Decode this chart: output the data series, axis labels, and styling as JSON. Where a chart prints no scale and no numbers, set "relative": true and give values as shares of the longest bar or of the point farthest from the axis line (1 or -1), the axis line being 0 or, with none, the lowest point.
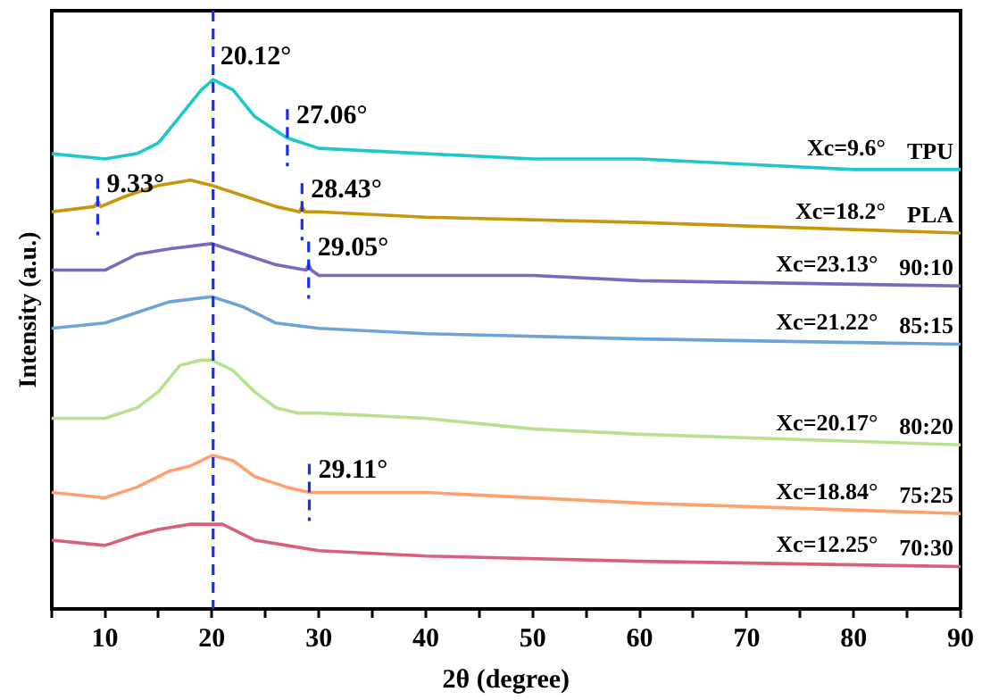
{
  "chart_data": {
    "type": "line",
    "relative": true,
    "xlabel": "2θ (degree)",
    "ylabel": "Intensity (a.u.)",
    "xlim": [
      5,
      90
    ],
    "xticks": [
      {
        "value": 5,
        "label": null
      },
      10,
      {
        "value": 15,
        "label": null
      },
      20,
      {
        "value": 25,
        "label": null
      },
      30,
      {
        "value": 35,
        "label": null
      },
      40,
      {
        "value": 45,
        "label": null
      },
      50,
      {
        "value": 55,
        "label": null
      },
      60,
      {
        "value": 65,
        "label": null
      },
      70,
      {
        "value": 75,
        "label": null
      },
      80,
      {
        "value": 85,
        "label": null
      },
      90
    ],
    "tick_labels": "x",
    "grid": false,
    "legend": false,
    "marker": "none",
    "line_style": "solid",
    "series": [
      {
        "name": "TPU",
        "color": "#1ec8c8",
        "x": [
          5,
          10,
          13,
          15,
          17,
          19,
          20.12,
          22,
          24,
          27,
          30,
          40,
          50,
          60,
          70,
          80,
          90
        ],
        "values": [
          0.86,
          0.85,
          0.86,
          0.88,
          0.93,
          0.98,
          1,
          0.98,
          0.93,
          0.89,
          0.87,
          0.86,
          0.85,
          0.85,
          0.84,
          0.83,
          0.83
        ]
      },
      {
        "name": "PLA",
        "color": "#c8960a",
        "x": [
          5,
          9,
          9.33,
          9.6,
          12,
          15,
          18,
          20,
          23,
          26,
          28.2,
          28.43,
          28.7,
          30,
          40,
          60,
          90
        ],
        "values": [
          0.75,
          0.76,
          0.77,
          0.76,
          0.78,
          0.8,
          0.81,
          0.8,
          0.78,
          0.76,
          0.75,
          0.76,
          0.75,
          0.75,
          0.74,
          0.73,
          0.71
        ]
      },
      {
        "name": "90:10",
        "color": "#7b68c0",
        "x": [
          5,
          10,
          13,
          16,
          20,
          23,
          26,
          28.8,
          29.05,
          29.3,
          30,
          40,
          50,
          60,
          90
        ],
        "values": [
          0.64,
          0.64,
          0.67,
          0.68,
          0.69,
          0.67,
          0.65,
          0.64,
          0.65,
          0.64,
          0.63,
          0.63,
          0.63,
          0.62,
          0.61
        ]
      },
      {
        "name": "85:15",
        "color": "#6fa3d8",
        "x": [
          5,
          10,
          13,
          16,
          20,
          23,
          26,
          30,
          40,
          60,
          90
        ],
        "values": [
          0.53,
          0.54,
          0.56,
          0.58,
          0.59,
          0.57,
          0.54,
          0.53,
          0.52,
          0.51,
          0.5
        ]
      },
      {
        "name": "80:20",
        "color": "#b8e090",
        "x": [
          5,
          10,
          13,
          15,
          17,
          19,
          20,
          22,
          24,
          26,
          28,
          30,
          40,
          50,
          60,
          90
        ],
        "values": [
          0.36,
          0.36,
          0.38,
          0.41,
          0.46,
          0.47,
          0.47,
          0.45,
          0.41,
          0.38,
          0.37,
          0.37,
          0.36,
          0.34,
          0.33,
          0.31
        ]
      },
      {
        "name": "75:25",
        "color": "#ffa070",
        "x": [
          5,
          10,
          13,
          16,
          18,
          20,
          22,
          24,
          27,
          29.11,
          30,
          40,
          60,
          90
        ],
        "values": [
          0.22,
          0.21,
          0.23,
          0.26,
          0.27,
          0.29,
          0.28,
          0.25,
          0.23,
          0.22,
          0.22,
          0.22,
          0.2,
          0.18
        ]
      },
      {
        "name": "70:30",
        "color": "#d9607a",
        "x": [
          5,
          10,
          13,
          15,
          18,
          21,
          24,
          27,
          30,
          40,
          60,
          90
        ],
        "values": [
          0.13,
          0.12,
          0.14,
          0.15,
          0.16,
          0.16,
          0.13,
          0.12,
          0.11,
          0.1,
          0.09,
          0.08
        ]
      }
    ],
    "ref_lines": [
      {
        "axis": "x",
        "value": 20.12,
        "label": "20.12°",
        "color": "#1a2cf0",
        "line_style": "dashed"
      }
    ],
    "annotations": [
      {
        "text": "9.33°",
        "x": 9.33,
        "y": 0.76
      },
      {
        "text": "27.06°",
        "x": 27.06,
        "y": 0.89
      },
      {
        "text": "28.43°",
        "x": 28.43,
        "y": 0.75
      },
      {
        "text": "29.05°",
        "x": 29.05,
        "y": 0.64
      },
      {
        "text": "29.11°",
        "x": 29.11,
        "y": 0.22
      },
      "Xc=9.6°",
      "Xc=18.2°",
      "Xc=23.13°",
      "Xc=21.22°",
      "Xc=20.17°",
      "Xc=18.84°",
      "Xc=12.25°"
    ]
  }
}
